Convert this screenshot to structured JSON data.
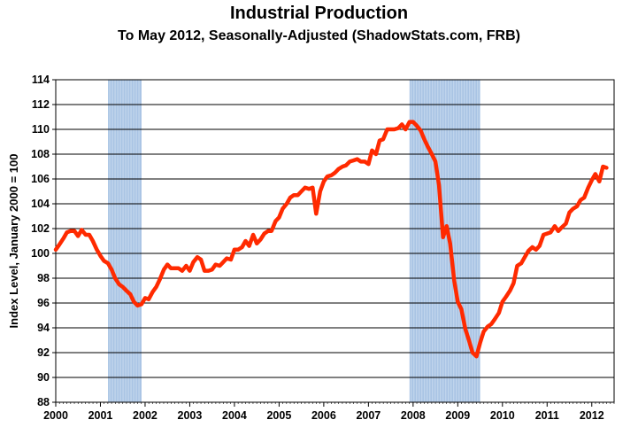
{
  "chart_data": {
    "type": "line",
    "title": "Industrial Production",
    "subtitle": "To May 2012, Seasonally-Adjusted (ShadowStats.com, FRB)",
    "xlabel": "",
    "ylabel": "Index Level, January 2000 = 100",
    "xlim": [
      2000,
      2012.5
    ],
    "ylim": [
      88,
      114
    ],
    "y_ticks": [
      88,
      90,
      92,
      94,
      96,
      98,
      100,
      102,
      104,
      106,
      108,
      110,
      112,
      114
    ],
    "x_ticks": [
      2000,
      2001,
      2002,
      2003,
      2004,
      2005,
      2006,
      2007,
      2008,
      2009,
      2010,
      2011,
      2012
    ],
    "grid": true,
    "recessions": [
      {
        "start": 2001.17,
        "end": 2001.92
      },
      {
        "start": 2007.92,
        "end": 2009.5
      }
    ],
    "series": [
      {
        "name": "Industrial Production",
        "color": "#ff2a00",
        "x": [
          2000.0,
          2000.08,
          2000.17,
          2000.25,
          2000.33,
          2000.42,
          2000.5,
          2000.58,
          2000.67,
          2000.75,
          2000.83,
          2000.92,
          2001.0,
          2001.08,
          2001.17,
          2001.25,
          2001.33,
          2001.42,
          2001.5,
          2001.58,
          2001.67,
          2001.75,
          2001.83,
          2001.92,
          2002.0,
          2002.08,
          2002.17,
          2002.25,
          2002.33,
          2002.42,
          2002.5,
          2002.58,
          2002.67,
          2002.75,
          2002.83,
          2002.92,
          2003.0,
          2003.08,
          2003.17,
          2003.25,
          2003.33,
          2003.42,
          2003.5,
          2003.58,
          2003.67,
          2003.75,
          2003.83,
          2003.92,
          2004.0,
          2004.08,
          2004.17,
          2004.25,
          2004.33,
          2004.42,
          2004.5,
          2004.58,
          2004.67,
          2004.75,
          2004.83,
          2004.92,
          2005.0,
          2005.08,
          2005.17,
          2005.25,
          2005.33,
          2005.42,
          2005.5,
          2005.58,
          2005.67,
          2005.75,
          2005.83,
          2005.92,
          2006.0,
          2006.08,
          2006.17,
          2006.25,
          2006.33,
          2006.42,
          2006.5,
          2006.58,
          2006.67,
          2006.75,
          2006.83,
          2006.92,
          2007.0,
          2007.08,
          2007.17,
          2007.25,
          2007.33,
          2007.42,
          2007.5,
          2007.58,
          2007.67,
          2007.75,
          2007.83,
          2007.92,
          2008.0,
          2008.08,
          2008.17,
          2008.25,
          2008.33,
          2008.42,
          2008.5,
          2008.58,
          2008.67,
          2008.75,
          2008.83,
          2008.92,
          2009.0,
          2009.08,
          2009.17,
          2009.25,
          2009.33,
          2009.42,
          2009.5,
          2009.58,
          2009.67,
          2009.75,
          2009.83,
          2009.92,
          2010.0,
          2010.08,
          2010.17,
          2010.25,
          2010.33,
          2010.42,
          2010.5,
          2010.58,
          2010.67,
          2010.75,
          2010.83,
          2010.92,
          2011.0,
          2011.08,
          2011.17,
          2011.25,
          2011.33,
          2011.42,
          2011.5,
          2011.58,
          2011.67,
          2011.75,
          2011.83,
          2011.92,
          2012.0,
          2012.08,
          2012.17,
          2012.25,
          2012.33
        ],
        "values": [
          100.3,
          100.7,
          101.2,
          101.7,
          101.8,
          101.8,
          101.4,
          101.9,
          101.5,
          101.5,
          101.0,
          100.3,
          99.8,
          99.4,
          99.2,
          98.7,
          98.0,
          97.5,
          97.3,
          97.0,
          96.7,
          96.1,
          95.8,
          95.9,
          96.4,
          96.3,
          96.9,
          97.3,
          97.9,
          98.7,
          99.1,
          98.8,
          98.8,
          98.8,
          98.6,
          99.0,
          98.6,
          99.3,
          99.7,
          99.5,
          98.6,
          98.6,
          98.7,
          99.1,
          99.0,
          99.3,
          99.6,
          99.5,
          100.3,
          100.3,
          100.5,
          101.0,
          100.6,
          101.5,
          100.8,
          101.1,
          101.6,
          101.8,
          101.8,
          102.6,
          102.9,
          103.6,
          104.0,
          104.5,
          104.7,
          104.7,
          105.0,
          105.3,
          105.2,
          105.3,
          103.2,
          105.0,
          105.8,
          106.2,
          106.3,
          106.5,
          106.8,
          107.0,
          107.1,
          107.4,
          107.5,
          107.6,
          107.4,
          107.4,
          107.2,
          108.3,
          108.0,
          109.1,
          109.2,
          110.0,
          110.0,
          110.0,
          110.1,
          110.4,
          110.0,
          110.6,
          110.6,
          110.3,
          109.9,
          109.2,
          108.6,
          108.0,
          107.4,
          105.5,
          101.3,
          102.2,
          100.8,
          97.8,
          96.1,
          95.5,
          93.9,
          93.0,
          92.0,
          91.7,
          92.8,
          93.7,
          94.1,
          94.3,
          94.7,
          95.2,
          96.1,
          96.5,
          97.0,
          97.6,
          99.0,
          99.2,
          99.7,
          100.2,
          100.5,
          100.3,
          100.6,
          101.5,
          101.6,
          101.7,
          102.2,
          101.8,
          102.1,
          102.4,
          103.3,
          103.6,
          103.8,
          104.3,
          104.5,
          105.3,
          105.9,
          106.4,
          105.8,
          107.0,
          106.9
        ]
      }
    ]
  }
}
